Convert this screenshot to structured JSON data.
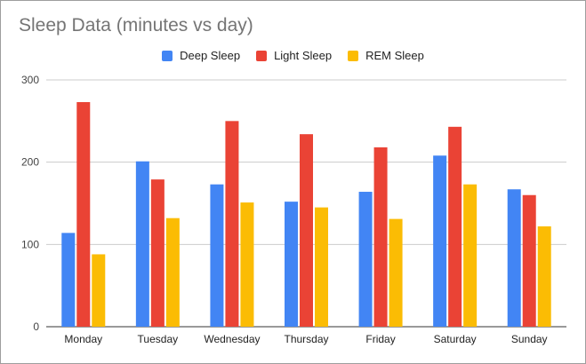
{
  "chart_data": {
    "type": "bar",
    "title": "Sleep Data (minutes vs day)",
    "xlabel": "",
    "ylabel": "",
    "categories": [
      "Monday",
      "Tuesday",
      "Wednesday",
      "Thursday",
      "Friday",
      "Saturday",
      "Sunday"
    ],
    "series": [
      {
        "name": "Deep Sleep",
        "color": "#4285f4",
        "values": [
          114,
          201,
          173,
          152,
          164,
          208,
          167
        ]
      },
      {
        "name": "Light Sleep",
        "color": "#ea4335",
        "values": [
          273,
          179,
          250,
          234,
          218,
          243,
          160
        ]
      },
      {
        "name": "REM Sleep",
        "color": "#fbbc04",
        "values": [
          88,
          132,
          151,
          145,
          131,
          173,
          122
        ]
      }
    ],
    "ylim": [
      0,
      300
    ],
    "yticks": [
      "0",
      "100",
      "200",
      "300"
    ],
    "grid": true,
    "legend_position": "top"
  }
}
